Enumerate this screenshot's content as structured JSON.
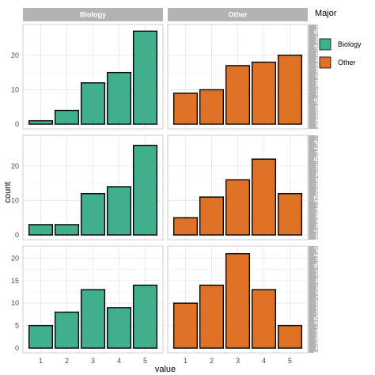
{
  "chart_data": {
    "type": "bar",
    "facet_columns": [
      "Biology",
      "Other"
    ],
    "facet_rows": [
      "Preparing.for.professional.or.graduate.school",
      "Applying.to.a.biology.related.job",
      "Applying.to.a.non.biology.related.job"
    ],
    "facet_row_labels_visible": [
      "...ng.to.professional.or.graduate.s",
      "...plying.to.a.biology.related.job",
      "...plying.to.a.non.biology.related.jo"
    ],
    "categories": [
      "1",
      "2",
      "3",
      "4",
      "5"
    ],
    "panels": [
      {
        "row": 0,
        "col": 0,
        "values": [
          1,
          4,
          12,
          15,
          27
        ]
      },
      {
        "row": 0,
        "col": 1,
        "values": [
          9,
          10,
          17,
          18,
          20
        ]
      },
      {
        "row": 1,
        "col": 0,
        "values": [
          3,
          3,
          12,
          14,
          26
        ]
      },
      {
        "row": 1,
        "col": 1,
        "values": [
          5,
          11,
          16,
          22,
          12
        ]
      },
      {
        "row": 2,
        "col": 0,
        "values": [
          5,
          8,
          13,
          9,
          14
        ]
      },
      {
        "row": 2,
        "col": 1,
        "values": [
          10,
          14,
          21,
          13,
          5
        ]
      }
    ],
    "row_yticks": [
      [
        0,
        10,
        20
      ],
      [
        0,
        10,
        20
      ],
      [
        0,
        5,
        10,
        15,
        20
      ]
    ],
    "row_ylim": [
      [
        0,
        28
      ],
      [
        0,
        28
      ],
      [
        0,
        22
      ]
    ],
    "xlabel": "value",
    "ylabel": "count",
    "legend": {
      "title": "Major",
      "position": "right",
      "entries": [
        {
          "label": "Biology",
          "color": "#3faf8d"
        },
        {
          "label": "Other",
          "color": "#df7126"
        }
      ]
    },
    "grid": true
  },
  "colors": {
    "Biology": "#3faf8d",
    "Other": "#df7126",
    "strip": "#b3b3b3",
    "bar_border": "#000000"
  }
}
